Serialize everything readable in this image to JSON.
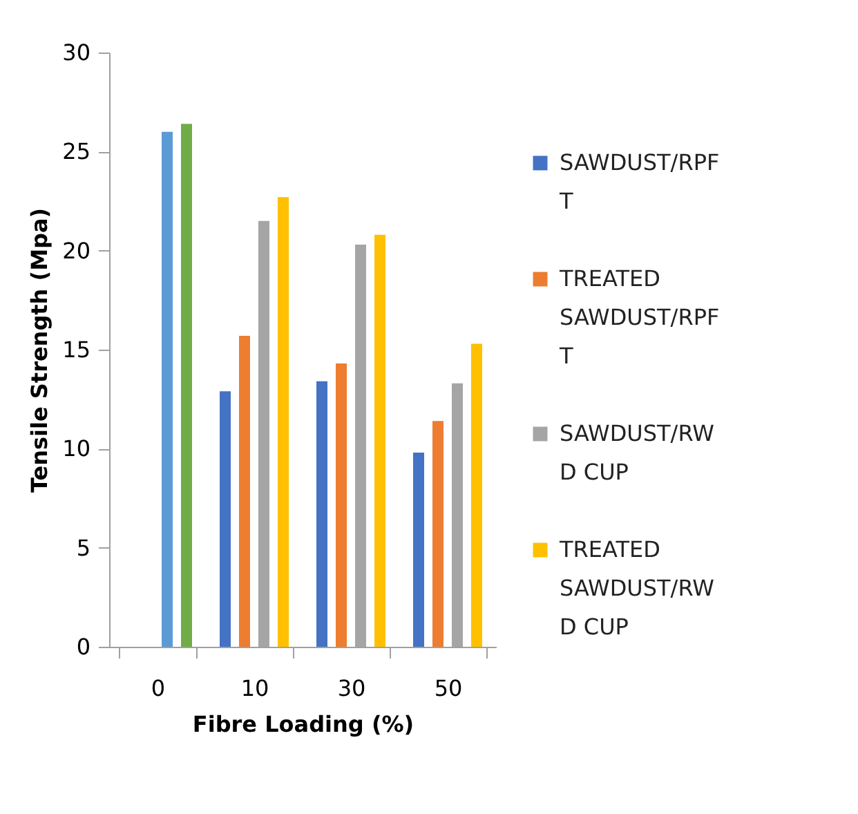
{
  "chart_data": {
    "type": "bar",
    "xlabel": "Fibre Loading (%)",
    "ylabel": "Tensile Strength (Mpa)",
    "categories": [
      "0",
      "10",
      "30",
      "50"
    ],
    "series": [
      {
        "name": "SAWDUST/RPF T",
        "color": "#4472c4",
        "values": [
          null,
          12.9,
          13.4,
          9.8
        ]
      },
      {
        "name": "TREATED SAWDUST/RPF T",
        "color": "#ed7d31",
        "values": [
          null,
          15.7,
          14.3,
          11.4
        ]
      },
      {
        "name": "SAWDUST/RW D CUP",
        "color": "#a5a5a5",
        "colors": [
          "#5b9bd5",
          "#a5a5a5",
          "#a5a5a5",
          "#a5a5a5"
        ],
        "values": [
          26.0,
          21.5,
          20.3,
          13.3
        ]
      },
      {
        "name": "TREATED SAWDUST/RW D CUP",
        "color": "#ffc000",
        "colors": [
          "#70ad47",
          "#ffc000",
          "#ffc000",
          "#ffc000"
        ],
        "values": [
          26.4,
          22.7,
          20.8,
          15.3
        ]
      }
    ],
    "ylim": [
      0,
      30
    ],
    "yticks": [
      0,
      5,
      10,
      15,
      20,
      25,
      30
    ],
    "grid": false,
    "legend": "right"
  }
}
